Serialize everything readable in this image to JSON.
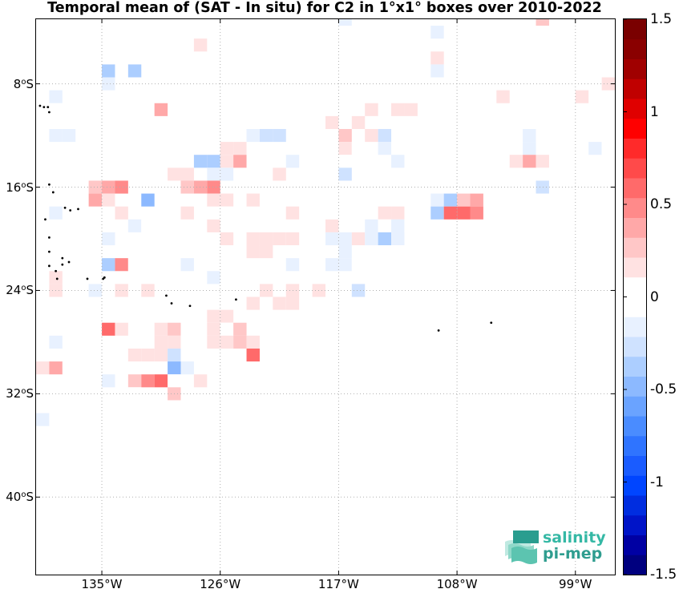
{
  "title": "Temporal mean of (SAT - In situ) for C2 in 1°x1° boxes over 2010-2022",
  "map_data": {
    "lon_range": [
      -140,
      -96
    ],
    "lat_range": [
      -46,
      -3
    ],
    "lon_ticks": [
      {
        "value": -135,
        "label": "135°W"
      },
      {
        "value": -126,
        "label": "126°W"
      },
      {
        "value": -117,
        "label": "117°W"
      },
      {
        "value": -108,
        "label": "108°W"
      },
      {
        "value": -99,
        "label": "99°W"
      }
    ],
    "lat_ticks": [
      {
        "value": -8,
        "num": "8",
        "unit": "o",
        "hemi": "S"
      },
      {
        "value": -16,
        "num": "16",
        "unit": "o",
        "hemi": "S"
      },
      {
        "value": -24,
        "num": "24",
        "unit": "o",
        "hemi": "S"
      },
      {
        "value": -32,
        "num": "32",
        "unit": "o",
        "hemi": "S"
      },
      {
        "value": -40,
        "num": "40",
        "unit": "o",
        "hemi": "S"
      }
    ],
    "grid": true,
    "cells": [
      [
        -117,
        -3,
        -0.15
      ],
      [
        -102,
        -3,
        0.3
      ],
      [
        -110,
        -4,
        -0.15
      ],
      [
        -126,
        -5,
        -0.1
      ],
      [
        -128,
        -5,
        0.15
      ],
      [
        -110,
        -6,
        0.15
      ],
      [
        -112,
        -7,
        -0.1
      ],
      [
        -110,
        -7,
        -0.15
      ],
      [
        -135,
        -7,
        -0.35
      ],
      [
        -133,
        -7,
        -0.35
      ],
      [
        -96,
        -7,
        0.2
      ],
      [
        -138,
        -8,
        -0.1
      ],
      [
        -135,
        -8,
        -0.15
      ],
      [
        -133,
        -8,
        -0.1
      ],
      [
        -124,
        -8,
        -0.1
      ],
      [
        -114,
        -8,
        -0.1
      ],
      [
        -112,
        -8,
        -0.1
      ],
      [
        -97,
        -8,
        0.15
      ],
      [
        -98,
        -8,
        -0.1
      ],
      [
        -115,
        -9,
        -0.1
      ],
      [
        -139,
        -9,
        -0.15
      ],
      [
        -116,
        -9,
        -0.1
      ],
      [
        -105,
        -9,
        0.2
      ],
      [
        -99,
        -9,
        0.2
      ],
      [
        -131,
        -10,
        0.35
      ],
      [
        -117,
        -10,
        -0.1
      ],
      [
        -115,
        -10,
        0.15
      ],
      [
        -113,
        -10,
        0.15
      ],
      [
        -112,
        -10,
        0.15
      ],
      [
        -101,
        -10,
        -0.1
      ],
      [
        -100,
        -10,
        -0.1
      ],
      [
        -139,
        -10,
        -0.1
      ],
      [
        -118,
        -11,
        0.15
      ],
      [
        -116,
        -11,
        0.15
      ],
      [
        -103,
        -11,
        -0.1
      ],
      [
        -139,
        -12,
        -0.15
      ],
      [
        -138,
        -12,
        -0.15
      ],
      [
        -128,
        -12,
        -0.1
      ],
      [
        -126,
        -12,
        -0.1
      ],
      [
        -124,
        -12,
        -0.15
      ],
      [
        -123,
        -12,
        -0.3
      ],
      [
        -122,
        -12,
        -0.3
      ],
      [
        -119,
        -12,
        -0.1
      ],
      [
        -117,
        -12,
        0.3
      ],
      [
        -115,
        -12,
        0.2
      ],
      [
        -114,
        -12,
        -0.3
      ],
      [
        -104,
        -12,
        -0.1
      ],
      [
        -103,
        -12,
        -0.15
      ],
      [
        -102,
        -12,
        -0.1
      ],
      [
        -140,
        -13,
        -0.1
      ],
      [
        -126,
        -13,
        0.2
      ],
      [
        -125,
        -13,
        0.2
      ],
      [
        -117,
        -13,
        0.15
      ],
      [
        -116,
        -13,
        -0.1
      ],
      [
        -114,
        -13,
        -0.15
      ],
      [
        -103,
        -13,
        -0.15
      ],
      [
        -101,
        -13,
        -0.1
      ],
      [
        -98,
        -13,
        -0.15
      ],
      [
        -97,
        -13,
        -0.1
      ],
      [
        -139,
        -14,
        -0.1
      ],
      [
        -128,
        -14,
        -0.35
      ],
      [
        -127,
        -14,
        -0.35
      ],
      [
        -126,
        -14,
        0.2
      ],
      [
        -125,
        -14,
        0.4
      ],
      [
        -121,
        -14,
        -0.15
      ],
      [
        -117,
        -14,
        -0.1
      ],
      [
        -113,
        -14,
        -0.15
      ],
      [
        -104,
        -14,
        0.2
      ],
      [
        -103,
        -14,
        0.4
      ],
      [
        -102,
        -14,
        0.2
      ],
      [
        -130,
        -15,
        0.2
      ],
      [
        -129,
        -15,
        0.2
      ],
      [
        -127,
        -15,
        -0.2
      ],
      [
        -126,
        -15,
        -0.15
      ],
      [
        -122,
        -15,
        0.2
      ],
      [
        -117,
        -15,
        -0.25
      ],
      [
        -102,
        -15,
        -0.1
      ],
      [
        -136,
        -16,
        0.3
      ],
      [
        -135,
        -16,
        0.35
      ],
      [
        -134,
        -16,
        0.5
      ],
      [
        -129,
        -16,
        0.3
      ],
      [
        -128,
        -16,
        0.35
      ],
      [
        -127,
        -16,
        0.5
      ],
      [
        -123,
        -16,
        -0.1
      ],
      [
        -124,
        -16,
        -0.1
      ],
      [
        -109,
        -16,
        -0.1
      ],
      [
        -102,
        -16,
        -0.25
      ],
      [
        -101,
        -16,
        -0.1
      ],
      [
        -136,
        -17,
        0.35
      ],
      [
        -135,
        -17,
        0.15
      ],
      [
        -132,
        -17,
        -0.45
      ],
      [
        -128,
        -17,
        -0.1
      ],
      [
        -127,
        -17,
        0.2
      ],
      [
        -126,
        -17,
        0.15
      ],
      [
        -124,
        -17,
        0.2
      ],
      [
        -123,
        -17,
        0.1
      ],
      [
        -110,
        -17,
        -0.2
      ],
      [
        -109,
        -17,
        -0.35
      ],
      [
        -108,
        -17,
        0.3
      ],
      [
        -107,
        -17,
        0.35
      ],
      [
        -102,
        -17,
        -0.1
      ],
      [
        -140,
        -18,
        -0.1
      ],
      [
        -139,
        -18,
        -0.15
      ],
      [
        -134,
        -18,
        0.15
      ],
      [
        -129,
        -18,
        0.2
      ],
      [
        -126,
        -18,
        -0.1
      ],
      [
        -121,
        -18,
        0.2
      ],
      [
        -114,
        -18,
        0.2
      ],
      [
        -113,
        -18,
        0.15
      ],
      [
        -112,
        -18,
        -0.1
      ],
      [
        -111,
        -18,
        -0.1
      ],
      [
        -110,
        -18,
        -0.35
      ],
      [
        -109,
        -18,
        0.6
      ],
      [
        -108,
        -18,
        0.6
      ],
      [
        -107,
        -18,
        0.45
      ],
      [
        -133,
        -19,
        -0.15
      ],
      [
        -132,
        -19,
        -0.1
      ],
      [
        -127,
        -19,
        0.15
      ],
      [
        -124,
        -19,
        -0.1
      ],
      [
        -123,
        -19,
        -0.1
      ],
      [
        -122,
        -19,
        -0.1
      ],
      [
        -120,
        -19,
        -0.1
      ],
      [
        -118,
        -19,
        0.15
      ],
      [
        -115,
        -19,
        -0.2
      ],
      [
        -114,
        -19,
        -0.1
      ],
      [
        -113,
        -19,
        -0.15
      ],
      [
        -112,
        -19,
        -0.1
      ],
      [
        -111,
        -19,
        -0.1
      ],
      [
        -135,
        -20,
        -0.2
      ],
      [
        -128,
        -20,
        -0.1
      ],
      [
        -126,
        -20,
        0.15
      ],
      [
        -124,
        -20,
        0.15
      ],
      [
        -123,
        -20,
        0.15
      ],
      [
        -122,
        -20,
        0.15
      ],
      [
        -121,
        -20,
        0.15
      ],
      [
        -118,
        -20,
        -0.15
      ],
      [
        -117,
        -20,
        -0.2
      ],
      [
        -116,
        -20,
        0.15
      ],
      [
        -115,
        -20,
        -0.2
      ],
      [
        -114,
        -20,
        -0.35
      ],
      [
        -113,
        -20,
        -0.15
      ],
      [
        -136,
        -21,
        0.1
      ],
      [
        -131,
        -21,
        -0.1
      ],
      [
        -126,
        -21,
        -0.1
      ],
      [
        -124,
        -21,
        0.15
      ],
      [
        -123,
        -21,
        0.15
      ],
      [
        -117,
        -21,
        -0.15
      ],
      [
        -113,
        -21,
        -0.1
      ],
      [
        -135,
        -22,
        -0.35
      ],
      [
        -134,
        -22,
        0.5
      ],
      [
        -133,
        -22,
        -0.1
      ],
      [
        -129,
        -22,
        -0.15
      ],
      [
        -122,
        -22,
        -0.1
      ],
      [
        -121,
        -22,
        -0.15
      ],
      [
        -119,
        -22,
        -0.1
      ],
      [
        -118,
        -22,
        -0.15
      ],
      [
        -117,
        -22,
        -0.15
      ],
      [
        -116,
        -22,
        -0.1
      ],
      [
        -139,
        -23,
        0.15
      ],
      [
        -137,
        -23,
        -0.1
      ],
      [
        -131,
        -23,
        0.1
      ],
      [
        -127,
        -23,
        -0.15
      ],
      [
        -125,
        -23,
        -0.1
      ],
      [
        -139,
        -24,
        0.15
      ],
      [
        -136,
        -24,
        -0.15
      ],
      [
        -134,
        -24,
        0.15
      ],
      [
        -132,
        -24,
        0.15
      ],
      [
        -123,
        -24,
        0.15
      ],
      [
        -121,
        -24,
        0.2
      ],
      [
        -119,
        -24,
        0.15
      ],
      [
        -118,
        -24,
        -0.1
      ],
      [
        -116,
        -24,
        -0.25
      ],
      [
        -140,
        -25,
        -0.1
      ],
      [
        -133,
        -25,
        -0.1
      ],
      [
        -129,
        -25,
        -0.1
      ],
      [
        -124,
        -25,
        0.15
      ],
      [
        -123,
        -25,
        -0.1
      ],
      [
        -122,
        -25,
        0.15
      ],
      [
        -121,
        -25,
        0.15
      ],
      [
        -127,
        -26,
        0.2
      ],
      [
        -126,
        -26,
        0.15
      ],
      [
        -135,
        -27,
        0.6
      ],
      [
        -134,
        -27,
        0.2
      ],
      [
        -131,
        -27,
        0.15
      ],
      [
        -130,
        -27,
        0.3
      ],
      [
        -127,
        -27,
        0.2
      ],
      [
        -126,
        -27,
        -0.1
      ],
      [
        -125,
        -27,
        0.3
      ],
      [
        -122,
        -27,
        -0.1
      ],
      [
        -121,
        -27,
        -0.1
      ],
      [
        -140,
        -28,
        -0.1
      ],
      [
        -139,
        -28,
        -0.15
      ],
      [
        -131,
        -28,
        0.15
      ],
      [
        -130,
        -28,
        0.15
      ],
      [
        -127,
        -28,
        0.15
      ],
      [
        -126,
        -28,
        0.15
      ],
      [
        -125,
        -28,
        0.3
      ],
      [
        -124,
        -28,
        0.15
      ],
      [
        -133,
        -29,
        0.15
      ],
      [
        -132,
        -29,
        0.15
      ],
      [
        -131,
        -29,
        0.15
      ],
      [
        -130,
        -29,
        -0.3
      ],
      [
        -124,
        -29,
        0.55
      ],
      [
        -140,
        -30,
        0.2
      ],
      [
        -139,
        -30,
        0.4
      ],
      [
        -130,
        -30,
        -0.45
      ],
      [
        -129,
        -30,
        -0.15
      ],
      [
        -127,
        -30,
        -0.1
      ],
      [
        -136,
        -31,
        -0.1
      ],
      [
        -135,
        -31,
        -0.15
      ],
      [
        -133,
        -31,
        0.3
      ],
      [
        -132,
        -31,
        0.45
      ],
      [
        -131,
        -31,
        0.6
      ],
      [
        -130,
        -31,
        -0.1
      ],
      [
        -128,
        -31,
        0.15
      ],
      [
        -141,
        -32,
        0.3
      ],
      [
        -138,
        -32,
        -0.1
      ],
      [
        -133,
        -32,
        -0.1
      ],
      [
        -130,
        -32,
        0.3
      ],
      [
        -137,
        -33,
        -0.1
      ],
      [
        -136,
        -33,
        -0.1
      ],
      [
        -135,
        -33,
        -0.1
      ],
      [
        -141,
        -34,
        -0.2
      ],
      [
        -140,
        -34,
        -0.2
      ],
      [
        -137,
        -34,
        -0.1
      ],
      [
        -136,
        -34,
        -0.1
      ]
    ],
    "islands": [
      [
        -140.1,
        -8.9
      ],
      [
        -139.7,
        -9.7
      ],
      [
        -139.4,
        -9.8
      ],
      [
        -139.1,
        -9.8
      ],
      [
        -139.0,
        -10.2
      ],
      [
        -139.0,
        -15.8
      ],
      [
        -138.7,
        -16.4
      ],
      [
        -137.8,
        -17.6
      ],
      [
        -137.4,
        -17.8
      ],
      [
        -136.8,
        -17.7
      ],
      [
        -139.3,
        -18.5
      ],
      [
        -139.0,
        -19.9
      ],
      [
        -139.0,
        -21.0
      ],
      [
        -138.0,
        -21.5
      ],
      [
        -137.5,
        -21.8
      ],
      [
        -138.5,
        -22.5
      ],
      [
        -138.0,
        -22.0
      ],
      [
        -139.0,
        -22.1
      ],
      [
        -136.1,
        -23.1
      ],
      [
        -134.9,
        -23.1
      ],
      [
        -134.8,
        -23.0
      ],
      [
        -130.1,
        -24.4
      ],
      [
        -129.7,
        -25.0
      ],
      [
        -128.3,
        -25.2
      ],
      [
        -124.8,
        -24.7
      ],
      [
        -109.4,
        -27.1
      ],
      [
        -105.4,
        -26.5
      ],
      [
        -138.4,
        -23.1
      ]
    ]
  },
  "colorbar": {
    "min": -1.5,
    "max": 1.5,
    "ticks": [
      {
        "value": 1.5,
        "label": "1.5"
      },
      {
        "value": 1,
        "label": "1"
      },
      {
        "value": 0.5,
        "label": "0.5"
      },
      {
        "value": 0,
        "label": "0"
      },
      {
        "value": -0.5,
        "label": "-0.5"
      },
      {
        "value": -1,
        "label": "-1"
      },
      {
        "value": -1.5,
        "label": "-1.5"
      }
    ],
    "colors": [
      "#00007f",
      "#0000a3",
      "#0014c8",
      "#002de0",
      "#0045ff",
      "#1a5cff",
      "#2f74ff",
      "#4a8cff",
      "#6aa3ff",
      "#8cb9ff",
      "#acceff",
      "#cfe2ff",
      "#e8f1ff",
      "#ffffff",
      "#ffffff",
      "#ffe2e2",
      "#ffc7c7",
      "#ffa8a8",
      "#ff8a8a",
      "#ff6a6a",
      "#ff4a4a",
      "#ff2a2a",
      "#ff0000",
      "#e00000",
      "#c00000",
      "#a00000",
      "#8a0000",
      "#7a0000"
    ]
  },
  "logo": {
    "line1": "salinity",
    "line2": "pi-mep"
  }
}
